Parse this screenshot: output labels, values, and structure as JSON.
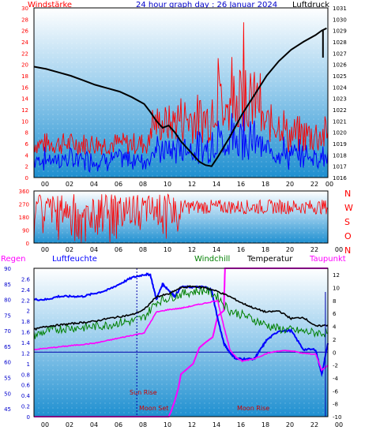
{
  "header": {
    "left": "Windstärke",
    "center": "24 hour graph day : 26 Januar 2024",
    "right": "Luftdruck"
  },
  "bottom_header": {
    "regen": "Regen",
    "luftfeuchte": "Luftfeuchte",
    "windchill": "Windchill",
    "temperatur": "Temperatur",
    "taupunkt": "Taupunkt"
  },
  "colors": {
    "background_top": "#ffffff",
    "background_bottom": "#1e8fd0",
    "wind_gust": "#ff0000",
    "wind_avg": "#0000ff",
    "pressure": "#000000",
    "direction": "#ff0000",
    "humidity": "#0000ff",
    "windchill": "#008000",
    "temperature": "#000000",
    "dewpoint": "#ff00ff",
    "rain_axis": "#0000aa",
    "sun_moon": "#cc0000"
  },
  "chart_data": [
    {
      "type": "line",
      "title": "24 hour graph day : 26 Januar 2024",
      "x_ticks": [
        "00",
        "02",
        "04",
        "06",
        "08",
        "10",
        "12",
        "14",
        "16",
        "18",
        "20",
        "22",
        "00"
      ],
      "left_axis": {
        "label": "Windstärke",
        "ylim": [
          0,
          30
        ],
        "ticks": [
          "0",
          "2",
          "4",
          "6",
          "8",
          "10",
          "12",
          "14",
          "16",
          "18",
          "20",
          "22",
          "24",
          "26",
          "28",
          "30"
        ]
      },
      "right_axis": {
        "label": "Luftdruck",
        "ylim": [
          1016,
          1031
        ],
        "ticks": [
          "1016",
          "1017",
          "1018",
          "1019",
          "1020",
          "1021",
          "1022",
          "1023",
          "1024",
          "1025",
          "1026",
          "1027",
          "1028",
          "1029",
          "1030",
          "1031"
        ]
      },
      "series": [
        {
          "name": "Luftdruck",
          "axis": "right",
          "x": [
            0,
            1,
            2,
            3,
            4,
            5,
            6,
            7,
            8,
            9,
            9.5,
            10,
            10.5,
            11,
            11.5,
            12,
            12.5,
            13,
            13.5,
            14,
            14.5,
            15,
            16,
            17,
            18,
            19,
            20,
            21,
            22,
            23,
            23.5,
            23.9
          ],
          "values": [
            1025.8,
            1025.6,
            1025.3,
            1025.0,
            1024.6,
            1024.2,
            1023.9,
            1023.6,
            1023.1,
            1022.5,
            1021.8,
            1021.0,
            1020.4,
            1020.6,
            1020.0,
            1019.2,
            1018.6,
            1018.0,
            1017.4,
            1017.1,
            1017.0,
            1017.8,
            1019.6,
            1021.6,
            1023.3,
            1025.0,
            1026.3,
            1027.3,
            1028.0,
            1028.6,
            1029.0,
            1029.2
          ]
        }
      ]
    },
    {
      "type": "line",
      "x_ticks": [
        "00",
        "02",
        "04",
        "06",
        "08",
        "10",
        "12",
        "14",
        "16",
        "18",
        "20",
        "22",
        "00"
      ],
      "left_axis": {
        "ylim": [
          0,
          360
        ],
        "ticks": [
          "0",
          "90",
          "180",
          "270",
          "360"
        ]
      },
      "right_labels": [
        "N",
        "W",
        "S",
        "O",
        "N"
      ],
      "series": [
        {
          "name": "Windrichtung",
          "approx_range": [
            200,
            320
          ]
        }
      ]
    },
    {
      "type": "line",
      "x_ticks": [
        "00",
        "02",
        "04",
        "06",
        "08",
        "10",
        "12",
        "14",
        "16",
        "18",
        "20",
        "22",
        "00"
      ],
      "humidity_axis": {
        "ylim": [
          42.5,
          90
        ],
        "ticks": [
          "45",
          "50",
          "55",
          "60",
          "65",
          "70",
          "75",
          "80",
          "85",
          "90"
        ]
      },
      "rain_axis": {
        "ylim": [
          0,
          2.8
        ],
        "ticks": [
          "0",
          "0.2",
          "0.4",
          "0.6",
          "0.8",
          "1",
          "1.2",
          "1.4",
          "1.6",
          "1.8",
          "2",
          "2.2",
          "2.4",
          "2.6"
        ]
      },
      "temp_axis": {
        "ylim": [
          -10,
          13
        ],
        "ticks": [
          "-10",
          "-8",
          "-6",
          "-4",
          "-2",
          "0",
          "2",
          "4",
          "6",
          "8",
          "10",
          "12"
        ]
      },
      "annotations": [
        "Sun Rise",
        "Moon Set",
        "Moon Rise"
      ],
      "series": [
        {
          "name": "Luftfeuchte",
          "axis": "humidity",
          "x": [
            0,
            1,
            2,
            3,
            4,
            5,
            6,
            7,
            8,
            9,
            9.5,
            10,
            10.5,
            11,
            11.5,
            12,
            13,
            14,
            14.5,
            15,
            15.5,
            16,
            16.5,
            17,
            18,
            18.5,
            19,
            20,
            21,
            22,
            23,
            23.5,
            24
          ],
          "values": [
            80,
            80,
            81,
            81,
            81,
            82,
            83,
            85,
            87,
            88,
            88,
            80,
            85,
            83,
            81,
            84,
            84,
            84,
            83,
            74,
            66,
            63,
            61,
            61,
            61,
            64,
            67,
            70,
            70,
            64,
            64,
            56,
            66
          ]
        },
        {
          "name": "Temperatur",
          "axis": "temp",
          "x": [
            0,
            1,
            2,
            3,
            4,
            5,
            6,
            7,
            8,
            9,
            10,
            11,
            12,
            13,
            14,
            15,
            16,
            17,
            18,
            19,
            20,
            21,
            22,
            23,
            24
          ],
          "values": [
            3.5,
            4.0,
            4.2,
            4.4,
            4.6,
            4.8,
            5.2,
            5.5,
            5.8,
            6.6,
            8.6,
            9.0,
            10.0,
            10.2,
            10.0,
            9.4,
            8.6,
            7.6,
            6.8,
            6.2,
            6.4,
            5.2,
            5.4,
            4.0,
            4.2
          ]
        },
        {
          "name": "Windchill",
          "axis": "temp",
          "x": [
            0,
            1,
            2,
            3,
            4,
            5,
            6,
            7,
            8,
            9,
            10,
            11,
            12,
            13,
            14,
            15,
            16,
            17,
            18,
            19,
            20,
            21,
            22,
            23,
            24
          ],
          "values": [
            2.6,
            3.2,
            3.6,
            3.8,
            3.8,
            4.0,
            4.2,
            4.6,
            4.8,
            5.4,
            7.8,
            8.4,
            9.0,
            9.4,
            9.6,
            8.6,
            6.4,
            5.8,
            5.0,
            4.2,
            3.6,
            3.4,
            3.2,
            3.0,
            3.0
          ]
        },
        {
          "name": "Taupunkt",
          "axis": "temp",
          "x": [
            0,
            1,
            2,
            3,
            4,
            5,
            6,
            7,
            8,
            9,
            10,
            11,
            12,
            13,
            14,
            15,
            15.5,
            16,
            16.5,
            17,
            18,
            19,
            20,
            21,
            22,
            23,
            23.5,
            24
          ],
          "values": [
            0.4,
            0.6,
            0.8,
            1.0,
            1.2,
            1.4,
            1.8,
            2.2,
            2.6,
            3.0,
            6.2,
            6.6,
            6.8,
            7.2,
            7.6,
            8.0,
            4.0,
            0.4,
            -0.8,
            -1.4,
            -1.0,
            -0.2,
            0.2,
            0.2,
            -0.2,
            -0.3,
            -2.8,
            -2.0
          ]
        },
        {
          "name": "Regen",
          "axis": "rain",
          "x": [
            0,
            11,
            11.2,
            11.5,
            11.8,
            12,
            12.5,
            13,
            13.5,
            14,
            14.6,
            15,
            15.5,
            15.6,
            16,
            24
          ],
          "values": [
            0,
            0,
            0.1,
            0.3,
            0.55,
            0.8,
            0.9,
            1.0,
            1.3,
            1.4,
            1.5,
            1.9,
            2.0,
            2.8,
            2.8,
            2.8
          ]
        }
      ]
    }
  ]
}
